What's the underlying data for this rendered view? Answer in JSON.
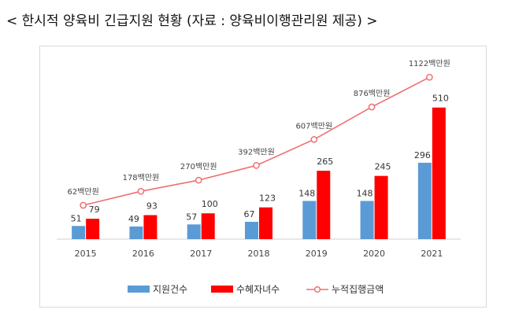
{
  "title": "< 한시적 양육비 긴급지원 현황 (자료 : 양육비이행관리원 제공) >",
  "chart_data": {
    "type": "bar",
    "categories": [
      "2015",
      "2016",
      "2017",
      "2018",
      "2019",
      "2020",
      "2021"
    ],
    "series": [
      {
        "name": "지원건수",
        "type": "bar",
        "color": "#5b9bd5",
        "values": [
          51,
          49,
          57,
          67,
          148,
          148,
          296
        ]
      },
      {
        "name": "수혜자녀수",
        "type": "bar",
        "color": "#ff0000",
        "values": [
          79,
          93,
          100,
          123,
          265,
          245,
          510
        ]
      },
      {
        "name": "누적집행금액",
        "type": "line",
        "color": "#f07070",
        "values": [
          62,
          178,
          270,
          392,
          607,
          876,
          1122
        ],
        "labels": [
          "62백만원",
          "178백만원",
          "270백만원",
          "392백만원",
          "607백만원",
          "876백만원",
          "1122백만원"
        ]
      }
    ],
    "legend": "bottom",
    "grid": false
  }
}
